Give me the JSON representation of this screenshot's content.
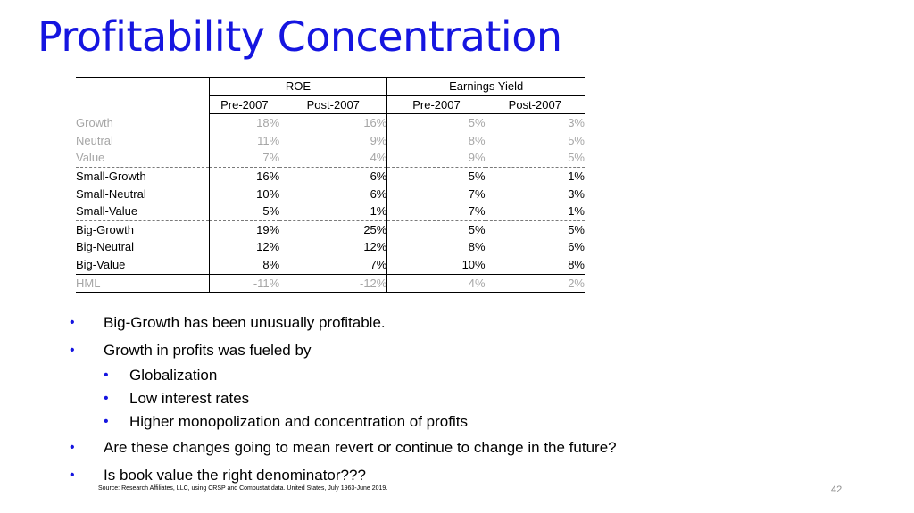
{
  "title": "Profitability Concentration",
  "table": {
    "groups": [
      "ROE",
      "Earnings Yield"
    ],
    "subheaders": [
      "Pre-2007",
      "Post-2007",
      "Pre-2007",
      "Post-2007"
    ],
    "rows": [
      {
        "label": "Growth",
        "values": [
          "18%",
          "16%",
          "5%",
          "3%"
        ]
      },
      {
        "label": "Neutral",
        "values": [
          "11%",
          "9%",
          "8%",
          "5%"
        ]
      },
      {
        "label": "Value",
        "values": [
          "7%",
          "4%",
          "9%",
          "5%"
        ]
      },
      {
        "label": "Small-Growth",
        "values": [
          "16%",
          "6%",
          "5%",
          "1%"
        ]
      },
      {
        "label": "Small-Neutral",
        "values": [
          "10%",
          "6%",
          "7%",
          "3%"
        ]
      },
      {
        "label": "Small-Value",
        "values": [
          "5%",
          "1%",
          "7%",
          "1%"
        ]
      },
      {
        "label": "Big-Growth",
        "values": [
          "19%",
          "25%",
          "5%",
          "5%"
        ]
      },
      {
        "label": "Big-Neutral",
        "values": [
          "12%",
          "12%",
          "8%",
          "6%"
        ]
      },
      {
        "label": "Big-Value",
        "values": [
          "8%",
          "7%",
          "10%",
          "8%"
        ]
      },
      {
        "label": "HML",
        "values": [
          "-11%",
          "-12%",
          "4%",
          "2%"
        ]
      }
    ]
  },
  "bullets": {
    "b1": "Big-Growth has been unusually profitable.",
    "b2": "Growth in profits was fueled by",
    "s1": "Globalization",
    "s2": "Low interest rates",
    "s3": "Higher monopolization and concentration of profits",
    "b3": "Are these changes going to mean revert or continue to change in the future?",
    "b4": "Is book value the right denominator???"
  },
  "bullet_glyph": "•",
  "source": "Source: Research Affiliates, LLC, using CRSP and Compustat data. United States, July 1963-June 2019.",
  "page_number": "42",
  "colors": {
    "accent": "#1515e0",
    "muted": "#a6a6a6"
  }
}
